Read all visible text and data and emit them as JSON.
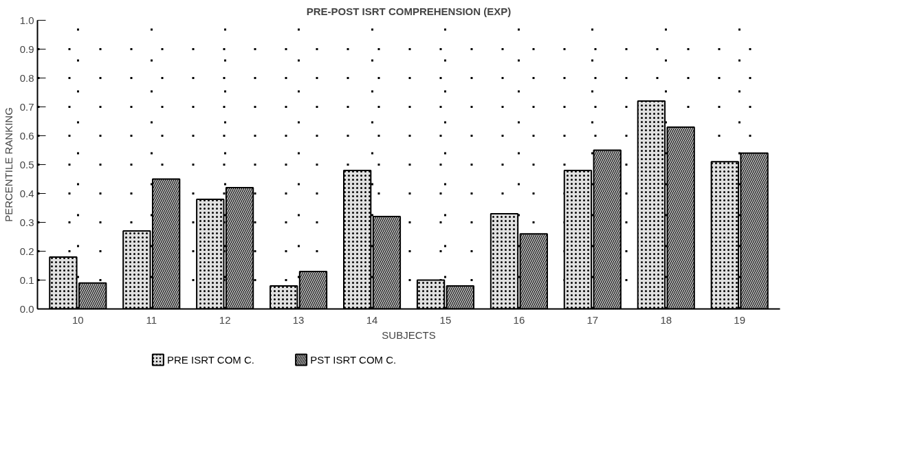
{
  "chart_data": {
    "type": "bar",
    "title": "PRE-POST ISRT COMPREHENSION (EXP)",
    "xlabel": "SUBJECTS",
    "ylabel": "PERCENTILE RANKING",
    "categories": [
      "10",
      "11",
      "12",
      "13",
      "14",
      "15",
      "16",
      "17",
      "18",
      "19"
    ],
    "series": [
      {
        "name": "PRE ISRT COM C.",
        "color": "#e0e0e0",
        "values": [
          0.18,
          0.27,
          0.38,
          0.08,
          0.48,
          0.1,
          0.33,
          0.48,
          0.72,
          0.51
        ]
      },
      {
        "name": "PST ISRT COM C.",
        "color": "#b0b0b0",
        "values": [
          0.09,
          0.45,
          0.42,
          0.13,
          0.32,
          0.08,
          0.26,
          0.55,
          0.63,
          0.54
        ]
      }
    ],
    "ylim": [
      0,
      1.0
    ],
    "yticks": [
      {
        "value": 0,
        "label": "0.0"
      },
      0.1,
      0.2,
      0.3,
      0.4,
      0.5,
      0.6,
      0.7,
      0.8,
      0.9,
      {
        "value": 1,
        "label": "1.0"
      }
    ],
    "grid": true,
    "legend": "bottom left",
    "line_style": "dotted"
  }
}
